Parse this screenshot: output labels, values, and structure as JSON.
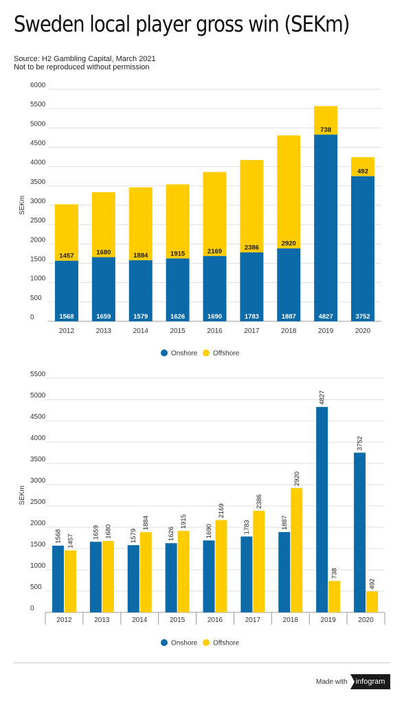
{
  "header": {
    "title": "Sweden local player gross win (SEKm)",
    "source_line1": "Source: H2 Gambling Capital, March 2021",
    "source_line2": "Not to be reproduced without permission"
  },
  "colors": {
    "onshore": "#0d6aa8",
    "offshore": "#ffcc00",
    "grid": "#dedede",
    "axis": "#999999"
  },
  "chart_data": [
    {
      "type": "bar",
      "stacked": true,
      "ylabel": "SEKm",
      "ylim": [
        0,
        6000
      ],
      "yticks": [
        0,
        500,
        1000,
        1500,
        2000,
        2500,
        3000,
        3500,
        4000,
        4500,
        5000,
        5500,
        6000
      ],
      "categories": [
        "2012",
        "2013",
        "2014",
        "2015",
        "2016",
        "2017",
        "2018",
        "2019",
        "2020"
      ],
      "series": [
        {
          "name": "Onshore",
          "values": [
            1568,
            1659,
            1579,
            1626,
            1690,
            1783,
            1887,
            4827,
            3752
          ]
        },
        {
          "name": "Offshore",
          "values": [
            1457,
            1680,
            1884,
            1915,
            2169,
            2386,
            2920,
            738,
            492
          ]
        }
      ],
      "legend": "bottom",
      "grid": true
    },
    {
      "type": "bar",
      "stacked": false,
      "ylabel": "SEKm",
      "ylim": [
        0,
        5500
      ],
      "yticks": [
        0,
        500,
        1000,
        1500,
        2000,
        2500,
        3000,
        3500,
        4000,
        4500,
        5000,
        5500
      ],
      "categories": [
        "2012",
        "2013",
        "2014",
        "2015",
        "2016",
        "2017",
        "2018",
        "2019",
        "2020"
      ],
      "series": [
        {
          "name": "Onshore",
          "values": [
            1568,
            1659,
            1579,
            1626,
            1690,
            1783,
            1887,
            4827,
            3752
          ]
        },
        {
          "name": "Offshore",
          "values": [
            1457,
            1680,
            1884,
            1915,
            2169,
            2386,
            2920,
            738,
            492
          ]
        }
      ],
      "legend": "bottom",
      "grid": true
    }
  ],
  "footer": {
    "made_with": "Made with",
    "brand": "infogram"
  }
}
